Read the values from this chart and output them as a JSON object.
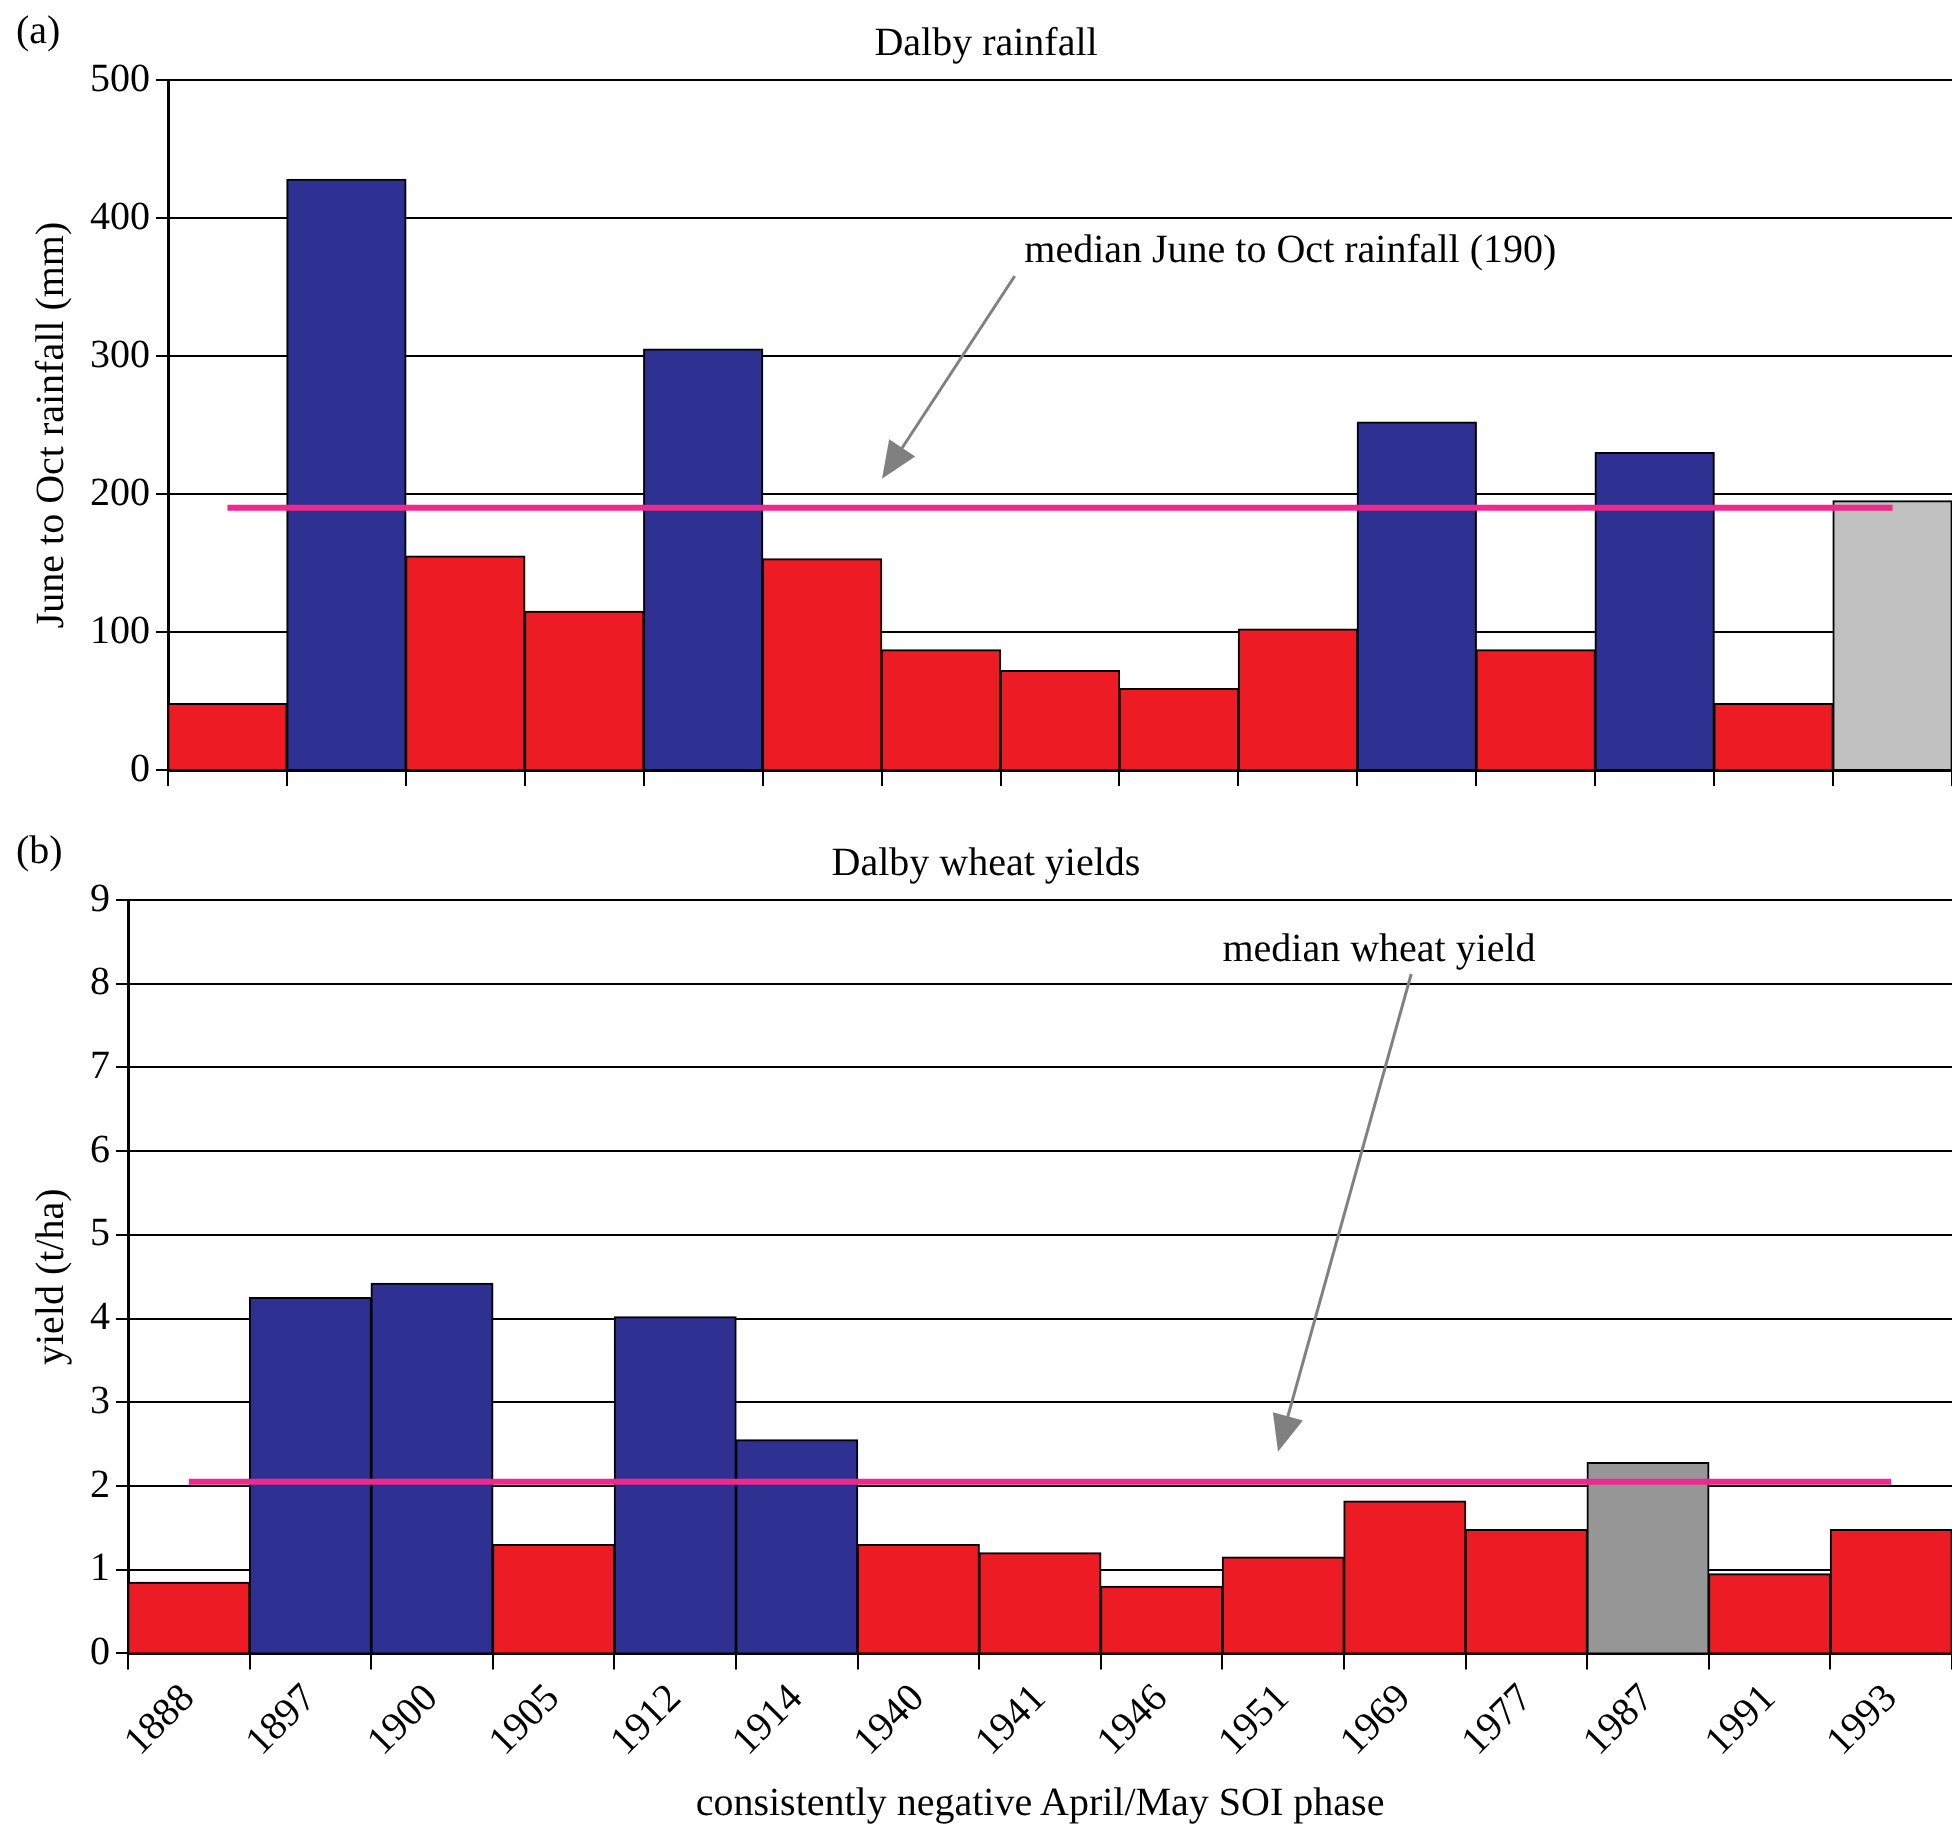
{
  "chart_data": [
    {
      "type": "bar",
      "title": "Dalby rainfall",
      "ylabel": "June to Oct rainfall (mm)",
      "annotations": [
        "(a)",
        "median June to Oct rainfall (190)"
      ],
      "categories": [
        "1888",
        "1897",
        "1900",
        "1905",
        "1912",
        "1914",
        "1940",
        "1941",
        "1946",
        "1951",
        "1969",
        "1977",
        "1987",
        "1991",
        "1993"
      ],
      "values": [
        48,
        428,
        155,
        115,
        305,
        153,
        87,
        72,
        59,
        102,
        252,
        87,
        230,
        48,
        195
      ],
      "colors": [
        "#ed1c24",
        "#2e3192",
        "#ed1c24",
        "#ed1c24",
        "#2e3192",
        "#ed1c24",
        "#ed1c24",
        "#ed1c24",
        "#ed1c24",
        "#ed1c24",
        "#2e3192",
        "#ed1c24",
        "#2e3192",
        "#ed1c24",
        "#c0c0c0"
      ],
      "ylim": [
        0,
        500
      ],
      "yticks": [
        0,
        100,
        200,
        300,
        400,
        500
      ],
      "grid": "y",
      "tick_labels": "y",
      "ref_lines": [
        {
          "axis": "y",
          "value": 190,
          "color": "#ec2a8e"
        }
      ]
    },
    {
      "type": "bar",
      "title": "Dalby wheat yields",
      "xlabel": "consistently negative April/May SOI phase",
      "ylabel": "yield (t/ha)",
      "annotations": [
        "(b)",
        "median wheat yield"
      ],
      "categories": [
        "1888",
        "1897",
        "1900",
        "1905",
        "1912",
        "1914",
        "1940",
        "1941",
        "1946",
        "1951",
        "1969",
        "1977",
        "1987",
        "1991",
        "1993"
      ],
      "values": [
        0.85,
        4.25,
        4.42,
        1.3,
        4.02,
        2.55,
        1.3,
        1.2,
        0.8,
        1.15,
        1.82,
        1.48,
        2.28,
        0.95,
        1.48
      ],
      "colors": [
        "#ed1c24",
        "#2e3192",
        "#2e3192",
        "#ed1c24",
        "#2e3192",
        "#2e3192",
        "#ed1c24",
        "#ed1c24",
        "#ed1c24",
        "#ed1c24",
        "#ed1c24",
        "#ed1c24",
        "#969696",
        "#ed1c24",
        "#ed1c24"
      ],
      "ylim": [
        0,
        9
      ],
      "yticks": [
        0,
        1,
        2,
        3,
        4,
        5,
        6,
        7,
        8,
        9
      ],
      "grid": "y",
      "ref_lines": [
        {
          "axis": "y",
          "value": 2.05,
          "color": "#ec2a8e"
        }
      ]
    }
  ]
}
